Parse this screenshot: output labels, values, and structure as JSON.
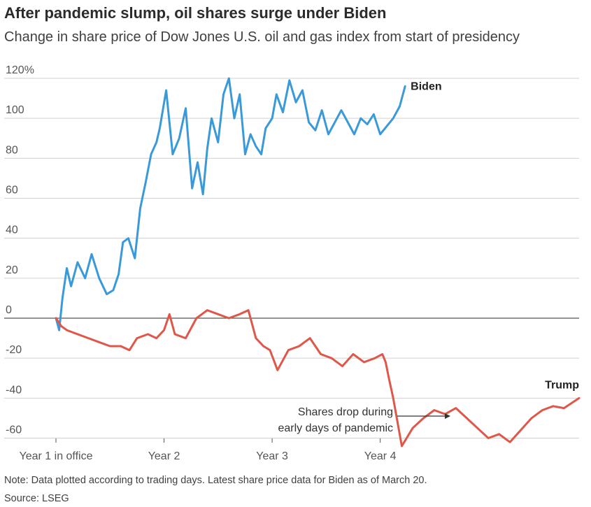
{
  "header": {
    "title": "After pandemic slump, oil shares surge under Biden",
    "subtitle": "Change in share price of Dow Jones U.S. oil and gas index from start of presidency"
  },
  "footer": {
    "note": "Note: Data plotted according to trading days. Latest share price data for Biden as of March 20.",
    "source": "Source: LSEG"
  },
  "colors": {
    "biden": "#3a9ad9",
    "trump": "#e0574a",
    "zero_line": "#555555",
    "grid": "#d0d0d0"
  },
  "chart_data": {
    "type": "line",
    "title": "After pandemic slump, oil shares surge under Biden",
    "subtitle": "Change in share price of Dow Jones U.S. oil and gas index from start of presidency",
    "xlabel": "",
    "ylabel": "",
    "x_unit": "years in office",
    "xlim": [
      0,
      4.84
    ],
    "ylim": [
      -62,
      122
    ],
    "grid": true,
    "y_ticks": [
      {
        "value": 120,
        "label": "120%"
      },
      {
        "value": 100,
        "label": "100"
      },
      {
        "value": 80,
        "label": "80"
      },
      {
        "value": 60,
        "label": "60"
      },
      {
        "value": 40,
        "label": "40"
      },
      {
        "value": 20,
        "label": "20"
      },
      {
        "value": 0,
        "label": "0"
      },
      {
        "value": -20,
        "label": "-20"
      },
      {
        "value": -40,
        "label": "-40"
      },
      {
        "value": -60,
        "label": "-60"
      }
    ],
    "x_ticks": [
      {
        "value": 0,
        "label": "Year 1 in office"
      },
      {
        "value": 1,
        "label": "Year 2"
      },
      {
        "value": 2,
        "label": "Year 3"
      },
      {
        "value": 3,
        "label": "Year 4"
      }
    ],
    "series": [
      {
        "name": "Biden",
        "x": [
          0,
          0.03,
          0.06,
          0.1,
          0.14,
          0.2,
          0.27,
          0.33,
          0.4,
          0.47,
          0.53,
          0.58,
          0.62,
          0.67,
          0.73,
          0.78,
          0.83,
          0.88,
          0.93,
          0.96,
          1.02,
          1.08,
          1.14,
          1.2,
          1.26,
          1.31,
          1.36,
          1.4,
          1.44,
          1.5,
          1.55,
          1.6,
          1.65,
          1.7,
          1.75,
          1.8,
          1.85,
          1.9,
          1.94,
          2.0,
          2.04,
          2.1,
          2.16,
          2.22,
          2.28,
          2.34,
          2.4,
          2.46,
          2.52,
          2.58,
          2.64,
          2.7,
          2.76,
          2.82,
          2.88,
          2.94,
          3.0,
          3.06,
          3.12,
          3.18,
          3.23
        ],
        "values": [
          0,
          -6,
          10,
          25,
          16,
          28,
          20,
          32,
          20,
          12,
          14,
          22,
          38,
          40,
          30,
          55,
          68,
          82,
          88,
          95,
          114,
          82,
          90,
          105,
          65,
          78,
          62,
          85,
          100,
          88,
          112,
          120,
          100,
          112,
          82,
          92,
          86,
          82,
          95,
          100,
          112,
          103,
          119,
          108,
          114,
          98,
          94,
          104,
          92,
          98,
          104,
          98,
          92,
          100,
          97,
          102,
          92,
          96,
          100,
          106,
          116
        ]
      },
      {
        "name": "Trump",
        "x": [
          0,
          0.05,
          0.1,
          0.2,
          0.3,
          0.4,
          0.5,
          0.6,
          0.68,
          0.75,
          0.85,
          0.93,
          1.0,
          1.05,
          1.1,
          1.2,
          1.3,
          1.4,
          1.5,
          1.6,
          1.7,
          1.78,
          1.85,
          1.92,
          1.98,
          2.05,
          2.15,
          2.25,
          2.35,
          2.45,
          2.55,
          2.65,
          2.75,
          2.85,
          2.95,
          3.02,
          3.05,
          3.08,
          3.12,
          3.2,
          3.3,
          3.4,
          3.5,
          3.6,
          3.7,
          3.8,
          3.9,
          4.0,
          4.1,
          4.2,
          4.3,
          4.4,
          4.5,
          4.6,
          4.7,
          4.84
        ],
        "values": [
          0,
          -4,
          -6,
          -8,
          -10,
          -12,
          -14,
          -14,
          -16,
          -10,
          -8,
          -10,
          -6,
          2,
          -8,
          -10,
          0,
          4,
          2,
          0,
          2,
          4,
          -10,
          -14,
          -16,
          -26,
          -16,
          -14,
          -10,
          -18,
          -20,
          -24,
          -18,
          -22,
          -20,
          -18,
          -22,
          -30,
          -40,
          -64,
          -55,
          -50,
          -46,
          -48,
          -45,
          -50,
          -55,
          -60,
          -58,
          -62,
          -56,
          -50,
          -46,
          -44,
          -45,
          -40
        ]
      }
    ],
    "annotations": [
      "Shares drop during",
      "early days of pandemic"
    ]
  }
}
